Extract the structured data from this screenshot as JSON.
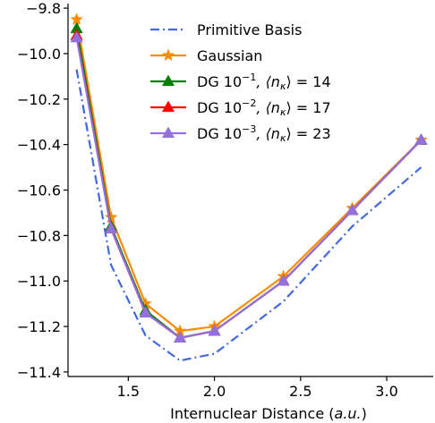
{
  "chart_data": {
    "type": "line",
    "xlabel": "Internuclear Distance (a.u.)",
    "ylabel": "",
    "xlim": [
      1.15,
      3.27
    ],
    "ylim": [
      -11.42,
      -9.78
    ],
    "x_ticks": [
      1.5,
      2.0,
      2.5,
      3.0
    ],
    "x_tick_labels": [
      "1.5",
      "2.0",
      "2.5",
      "3.0"
    ],
    "y_ticks": [
      -9.8,
      -10.0,
      -10.2,
      -10.4,
      -10.6,
      -10.8,
      -11.0,
      -11.2,
      -11.4
    ],
    "y_tick_labels": [
      "−9.8",
      "−10.0",
      "−10.2",
      "−10.4",
      "−10.6",
      "−10.8",
      "−11.0",
      "−11.2",
      "−11.4"
    ],
    "grid": false,
    "legend_position": "top-right",
    "series": [
      {
        "name": "Primitive Basis",
        "color": "#4169e1",
        "line_style": "dashdot",
        "marker": "none",
        "x": [
          1.2,
          1.4,
          1.6,
          1.8,
          2.0,
          2.4,
          2.8,
          3.2
        ],
        "y": [
          -10.07,
          -10.93,
          -11.24,
          -11.35,
          -11.32,
          -11.09,
          -10.76,
          -10.5
        ]
      },
      {
        "name": "Gaussian",
        "color": "#ff8c00",
        "line_style": "solid",
        "marker": "star",
        "x": [
          1.2,
          1.4,
          1.6,
          1.8,
          2.0,
          2.4,
          2.8,
          3.2
        ],
        "y": [
          -9.85,
          -10.72,
          -11.1,
          -11.22,
          -11.2,
          -10.98,
          -10.68,
          -10.38
        ]
      },
      {
        "name_parts": [
          "DG 10",
          "−1",
          ", ⟨n",
          "κ",
          "⟩ = 14"
        ],
        "color": "#008000",
        "line_style": "solid",
        "marker": "triangle",
        "x": [
          1.2,
          1.4,
          1.6,
          1.8,
          2.0,
          2.4,
          2.8,
          3.2
        ],
        "y": [
          -9.89,
          -10.76,
          -11.13,
          -11.25,
          -11.22,
          -11.0,
          -10.69,
          -10.38
        ]
      },
      {
        "name_parts": [
          "DG 10",
          "−2",
          ", ⟨n",
          "κ",
          "⟩ = 17"
        ],
        "color": "#ff0000",
        "line_style": "solid",
        "marker": "triangle",
        "x": [
          1.2,
          1.4,
          1.6,
          1.8,
          2.0,
          2.4,
          2.8,
          3.2
        ],
        "y": [
          -9.92,
          -10.77,
          -11.14,
          -11.25,
          -11.22,
          -11.0,
          -10.69,
          -10.38
        ]
      },
      {
        "name_parts": [
          "DG 10",
          "−3",
          ", ⟨n",
          "κ",
          "⟩ = 23"
        ],
        "color": "#9370db",
        "line_style": "solid",
        "marker": "triangle",
        "x": [
          1.2,
          1.4,
          1.6,
          1.8,
          2.0,
          2.4,
          2.8,
          3.2
        ],
        "y": [
          -9.93,
          -10.77,
          -11.14,
          -11.25,
          -11.22,
          -11.0,
          -10.69,
          -10.38
        ]
      }
    ]
  }
}
